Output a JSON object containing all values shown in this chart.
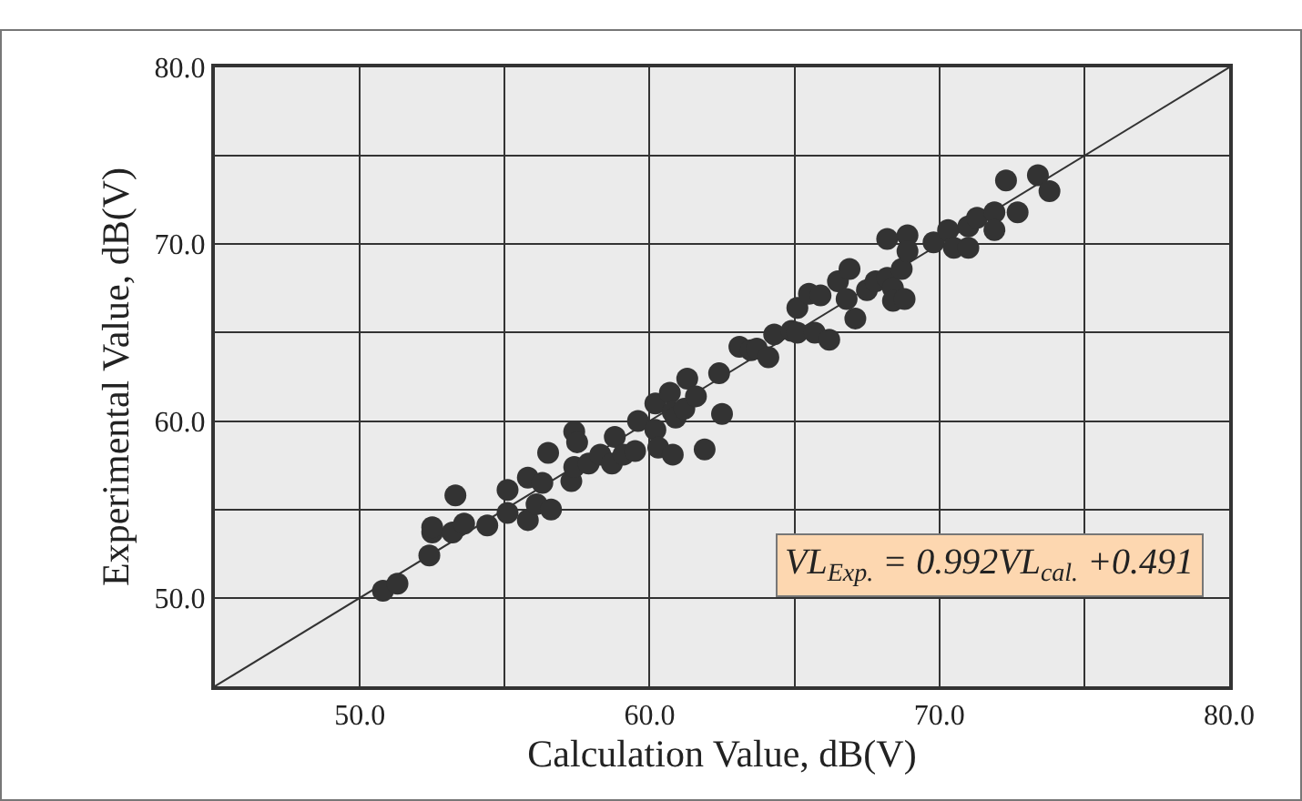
{
  "chart_data": {
    "type": "scatter",
    "xlabel": "Calculation Value, dB(V)",
    "ylabel": "Experimental Value, dB(V)",
    "xlim": [
      45,
      80
    ],
    "ylim": [
      45,
      80
    ],
    "xticks": [
      {
        "value": 50,
        "label": "50.0"
      },
      {
        "value": 55,
        "label": null
      },
      {
        "value": 60,
        "label": "60.0"
      },
      {
        "value": 65,
        "label": null
      },
      {
        "value": 70,
        "label": "70.0"
      },
      {
        "value": 75,
        "label": null
      },
      {
        "value": 80,
        "label": "80.0"
      }
    ],
    "yticks": [
      {
        "value": 50,
        "label": "50.0"
      },
      {
        "value": 55,
        "label": null
      },
      {
        "value": 60,
        "label": "60.0"
      },
      {
        "value": 65,
        "label": null
      },
      {
        "value": 70,
        "label": "70.0"
      },
      {
        "value": 75,
        "label": null
      },
      {
        "value": 80,
        "label": "80.0"
      }
    ],
    "grid": true,
    "marker": "circle",
    "annotations": [
      "VL$_{Exp.}$ = 0.992VL$_{cal.}$ +0.491"
    ],
    "series": [
      {
        "color": "#333333",
        "x": [
          50.8,
          51.3,
          52.4,
          52.5,
          52.5,
          53.3,
          53.2,
          53.6,
          54.4,
          55.1,
          55.1,
          55.8,
          55.8,
          56.3,
          56.1,
          56.6,
          56.5,
          57.4,
          57.5,
          57.3,
          57.4,
          57.9,
          58.3,
          58.7,
          58.8,
          59.1,
          59.5,
          59.6,
          60.2,
          60.3,
          60.2,
          60.7,
          60.8,
          60.9,
          61.2,
          61.3,
          60.8,
          61.6,
          61.9,
          62.4,
          62.5,
          63.1,
          63.5,
          63.7,
          64.1,
          64.3,
          64.9,
          65.1,
          65.1,
          65.5,
          65.9,
          65.7,
          66.2,
          66.5,
          66.9,
          66.8,
          67.1,
          67.5,
          67.8,
          68.2,
          68.4,
          68.4,
          68.8,
          68.7,
          68.2,
          68.9,
          68.9,
          69.8,
          70.3,
          70.5,
          71.0,
          71.0,
          71.3,
          71.9,
          71.9,
          72.7,
          72.3,
          73.4,
          73.8
        ],
        "values": [
          50.4,
          50.8,
          52.4,
          53.7,
          54.0,
          55.8,
          53.7,
          54.2,
          54.1,
          56.1,
          54.8,
          56.8,
          54.4,
          56.5,
          55.3,
          55.0,
          58.2,
          59.4,
          58.8,
          56.6,
          57.4,
          57.6,
          58.1,
          57.6,
          59.1,
          58.1,
          58.3,
          60.0,
          59.5,
          58.5,
          61.0,
          61.6,
          60.5,
          60.2,
          60.7,
          62.4,
          58.1,
          61.4,
          58.4,
          62.7,
          60.4,
          64.2,
          64.0,
          64.1,
          63.6,
          64.9,
          65.1,
          66.4,
          65.0,
          67.2,
          67.1,
          65.0,
          64.6,
          67.9,
          68.6,
          66.9,
          65.8,
          67.4,
          67.9,
          68.1,
          67.5,
          66.8,
          66.9,
          68.6,
          70.3,
          70.5,
          69.6,
          70.1,
          70.8,
          69.8,
          69.8,
          71.0,
          71.5,
          71.8,
          70.8,
          71.8,
          73.6,
          73.9,
          73.0
        ]
      },
      {
        "type": "line",
        "marker": "none",
        "color": "#333333",
        "x": [
          45,
          80
        ],
        "values": [
          45,
          80
        ]
      }
    ]
  }
}
